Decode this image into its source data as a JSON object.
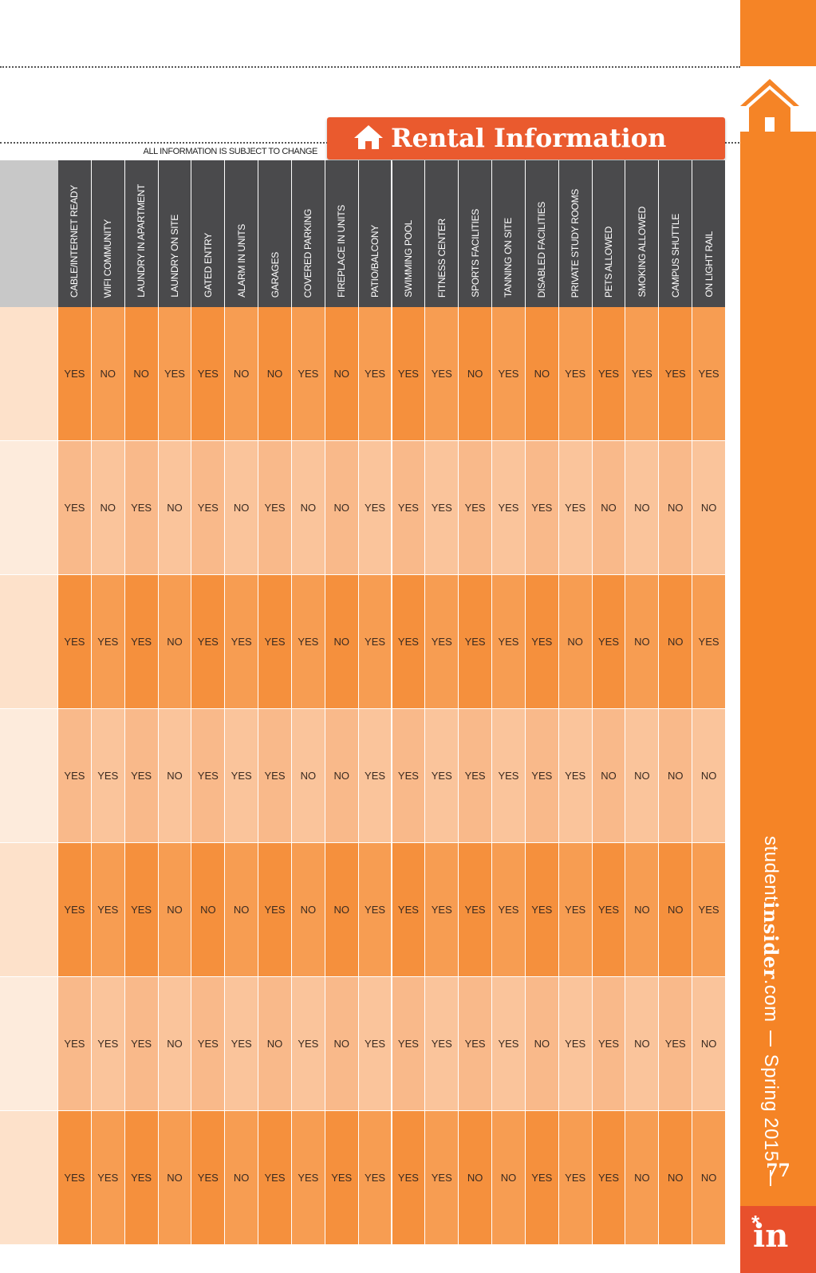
{
  "header": {
    "title": "Rental Information",
    "note": "ALL INFORMATION IS SUBJECT TO CHANGE"
  },
  "table": {
    "columns": [
      "CABLE/INTERNET READY",
      "WIFI COMMUNITY",
      "LAUNDRY IN APARTMENT",
      "LAUNDRY ON SITE",
      "GATED ENTRY",
      "ALARM IN UNITS",
      "GARAGES",
      "COVERED PARKING",
      "FIREPLACE IN UNITS",
      "PATIO/BALCONY",
      "SWIMMING POOL",
      "FITNESS CENTER",
      "SPORTS FACILITIES",
      "TANNING ON SITE",
      "DISABLED FACILITIES",
      "PRIVATE STUDY ROOMS",
      "PETS ALLOWED",
      "SMOKING ALLOWED",
      "CAMPUS SHUTTLE",
      "ON LIGHT RAIL"
    ],
    "rows": [
      [
        "YES",
        "NO",
        "NO",
        "YES",
        "YES",
        "NO",
        "NO",
        "YES",
        "NO",
        "YES",
        "YES",
        "YES",
        "NO",
        "YES",
        "NO",
        "YES",
        "YES",
        "YES",
        "YES",
        "YES"
      ],
      [
        "YES",
        "NO",
        "YES",
        "NO",
        "YES",
        "NO",
        "YES",
        "NO",
        "NO",
        "YES",
        "YES",
        "YES",
        "YES",
        "YES",
        "YES",
        "YES",
        "NO",
        "NO",
        "NO",
        "NO"
      ],
      [
        "YES",
        "YES",
        "YES",
        "NO",
        "YES",
        "YES",
        "YES",
        "YES",
        "NO",
        "YES",
        "YES",
        "YES",
        "YES",
        "YES",
        "YES",
        "NO",
        "YES",
        "NO",
        "NO",
        "YES"
      ],
      [
        "YES",
        "YES",
        "YES",
        "NO",
        "YES",
        "YES",
        "YES",
        "NO",
        "NO",
        "YES",
        "YES",
        "YES",
        "YES",
        "YES",
        "YES",
        "YES",
        "NO",
        "NO",
        "NO",
        "NO"
      ],
      [
        "YES",
        "YES",
        "YES",
        "NO",
        "NO",
        "NO",
        "YES",
        "NO",
        "NO",
        "YES",
        "YES",
        "YES",
        "YES",
        "YES",
        "YES",
        "YES",
        "YES",
        "NO",
        "NO",
        "YES"
      ],
      [
        "YES",
        "YES",
        "YES",
        "NO",
        "YES",
        "YES",
        "NO",
        "YES",
        "NO",
        "YES",
        "YES",
        "YES",
        "YES",
        "YES",
        "NO",
        "YES",
        "YES",
        "NO",
        "YES",
        "NO"
      ],
      [
        "YES",
        "YES",
        "YES",
        "NO",
        "YES",
        "NO",
        "YES",
        "YES",
        "YES",
        "YES",
        "YES",
        "YES",
        "NO",
        "NO",
        "YES",
        "YES",
        "YES",
        "NO",
        "NO",
        "NO"
      ]
    ]
  },
  "sidebar": {
    "site_prefix": "student",
    "site_name": "insider",
    "site_suffix": ".com",
    "season": "Spring 2015",
    "page": "77",
    "logo": "in"
  }
}
